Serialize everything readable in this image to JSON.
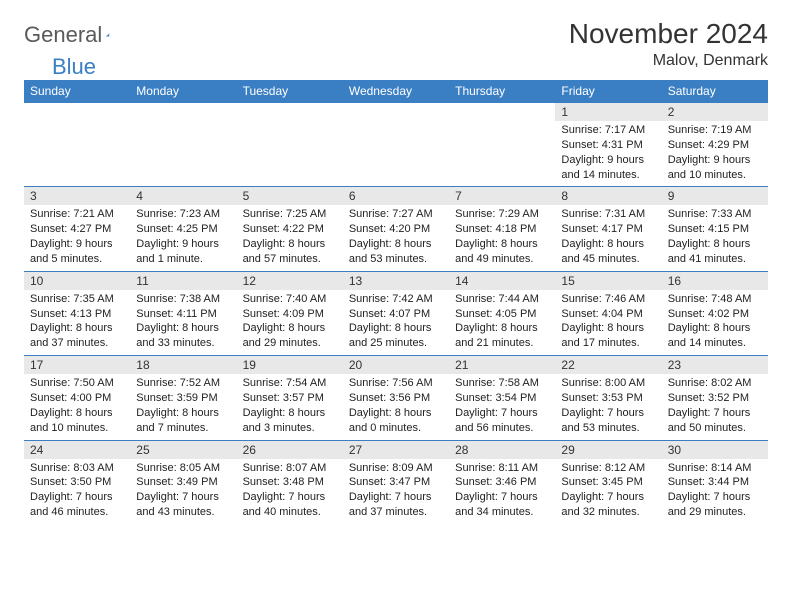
{
  "brand": {
    "word1": "General",
    "word2": "Blue"
  },
  "title": "November 2024",
  "location": "Malov, Denmark",
  "colors": {
    "header_bg": "#3a7fc4",
    "header_text": "#ffffff",
    "daynum_bg": "#e8e8e8",
    "border": "#3a7fc4",
    "text": "#222222"
  },
  "day_headers": [
    "Sunday",
    "Monday",
    "Tuesday",
    "Wednesday",
    "Thursday",
    "Friday",
    "Saturday"
  ],
  "weeks": [
    [
      {
        "n": "",
        "sr": "",
        "ss": "",
        "dl": ""
      },
      {
        "n": "",
        "sr": "",
        "ss": "",
        "dl": ""
      },
      {
        "n": "",
        "sr": "",
        "ss": "",
        "dl": ""
      },
      {
        "n": "",
        "sr": "",
        "ss": "",
        "dl": ""
      },
      {
        "n": "",
        "sr": "",
        "ss": "",
        "dl": ""
      },
      {
        "n": "1",
        "sr": "Sunrise: 7:17 AM",
        "ss": "Sunset: 4:31 PM",
        "dl": "Daylight: 9 hours and 14 minutes."
      },
      {
        "n": "2",
        "sr": "Sunrise: 7:19 AM",
        "ss": "Sunset: 4:29 PM",
        "dl": "Daylight: 9 hours and 10 minutes."
      }
    ],
    [
      {
        "n": "3",
        "sr": "Sunrise: 7:21 AM",
        "ss": "Sunset: 4:27 PM",
        "dl": "Daylight: 9 hours and 5 minutes."
      },
      {
        "n": "4",
        "sr": "Sunrise: 7:23 AM",
        "ss": "Sunset: 4:25 PM",
        "dl": "Daylight: 9 hours and 1 minute."
      },
      {
        "n": "5",
        "sr": "Sunrise: 7:25 AM",
        "ss": "Sunset: 4:22 PM",
        "dl": "Daylight: 8 hours and 57 minutes."
      },
      {
        "n": "6",
        "sr": "Sunrise: 7:27 AM",
        "ss": "Sunset: 4:20 PM",
        "dl": "Daylight: 8 hours and 53 minutes."
      },
      {
        "n": "7",
        "sr": "Sunrise: 7:29 AM",
        "ss": "Sunset: 4:18 PM",
        "dl": "Daylight: 8 hours and 49 minutes."
      },
      {
        "n": "8",
        "sr": "Sunrise: 7:31 AM",
        "ss": "Sunset: 4:17 PM",
        "dl": "Daylight: 8 hours and 45 minutes."
      },
      {
        "n": "9",
        "sr": "Sunrise: 7:33 AM",
        "ss": "Sunset: 4:15 PM",
        "dl": "Daylight: 8 hours and 41 minutes."
      }
    ],
    [
      {
        "n": "10",
        "sr": "Sunrise: 7:35 AM",
        "ss": "Sunset: 4:13 PM",
        "dl": "Daylight: 8 hours and 37 minutes."
      },
      {
        "n": "11",
        "sr": "Sunrise: 7:38 AM",
        "ss": "Sunset: 4:11 PM",
        "dl": "Daylight: 8 hours and 33 minutes."
      },
      {
        "n": "12",
        "sr": "Sunrise: 7:40 AM",
        "ss": "Sunset: 4:09 PM",
        "dl": "Daylight: 8 hours and 29 minutes."
      },
      {
        "n": "13",
        "sr": "Sunrise: 7:42 AM",
        "ss": "Sunset: 4:07 PM",
        "dl": "Daylight: 8 hours and 25 minutes."
      },
      {
        "n": "14",
        "sr": "Sunrise: 7:44 AM",
        "ss": "Sunset: 4:05 PM",
        "dl": "Daylight: 8 hours and 21 minutes."
      },
      {
        "n": "15",
        "sr": "Sunrise: 7:46 AM",
        "ss": "Sunset: 4:04 PM",
        "dl": "Daylight: 8 hours and 17 minutes."
      },
      {
        "n": "16",
        "sr": "Sunrise: 7:48 AM",
        "ss": "Sunset: 4:02 PM",
        "dl": "Daylight: 8 hours and 14 minutes."
      }
    ],
    [
      {
        "n": "17",
        "sr": "Sunrise: 7:50 AM",
        "ss": "Sunset: 4:00 PM",
        "dl": "Daylight: 8 hours and 10 minutes."
      },
      {
        "n": "18",
        "sr": "Sunrise: 7:52 AM",
        "ss": "Sunset: 3:59 PM",
        "dl": "Daylight: 8 hours and 7 minutes."
      },
      {
        "n": "19",
        "sr": "Sunrise: 7:54 AM",
        "ss": "Sunset: 3:57 PM",
        "dl": "Daylight: 8 hours and 3 minutes."
      },
      {
        "n": "20",
        "sr": "Sunrise: 7:56 AM",
        "ss": "Sunset: 3:56 PM",
        "dl": "Daylight: 8 hours and 0 minutes."
      },
      {
        "n": "21",
        "sr": "Sunrise: 7:58 AM",
        "ss": "Sunset: 3:54 PM",
        "dl": "Daylight: 7 hours and 56 minutes."
      },
      {
        "n": "22",
        "sr": "Sunrise: 8:00 AM",
        "ss": "Sunset: 3:53 PM",
        "dl": "Daylight: 7 hours and 53 minutes."
      },
      {
        "n": "23",
        "sr": "Sunrise: 8:02 AM",
        "ss": "Sunset: 3:52 PM",
        "dl": "Daylight: 7 hours and 50 minutes."
      }
    ],
    [
      {
        "n": "24",
        "sr": "Sunrise: 8:03 AM",
        "ss": "Sunset: 3:50 PM",
        "dl": "Daylight: 7 hours and 46 minutes."
      },
      {
        "n": "25",
        "sr": "Sunrise: 8:05 AM",
        "ss": "Sunset: 3:49 PM",
        "dl": "Daylight: 7 hours and 43 minutes."
      },
      {
        "n": "26",
        "sr": "Sunrise: 8:07 AM",
        "ss": "Sunset: 3:48 PM",
        "dl": "Daylight: 7 hours and 40 minutes."
      },
      {
        "n": "27",
        "sr": "Sunrise: 8:09 AM",
        "ss": "Sunset: 3:47 PM",
        "dl": "Daylight: 7 hours and 37 minutes."
      },
      {
        "n": "28",
        "sr": "Sunrise: 8:11 AM",
        "ss": "Sunset: 3:46 PM",
        "dl": "Daylight: 7 hours and 34 minutes."
      },
      {
        "n": "29",
        "sr": "Sunrise: 8:12 AM",
        "ss": "Sunset: 3:45 PM",
        "dl": "Daylight: 7 hours and 32 minutes."
      },
      {
        "n": "30",
        "sr": "Sunrise: 8:14 AM",
        "ss": "Sunset: 3:44 PM",
        "dl": "Daylight: 7 hours and 29 minutes."
      }
    ]
  ]
}
